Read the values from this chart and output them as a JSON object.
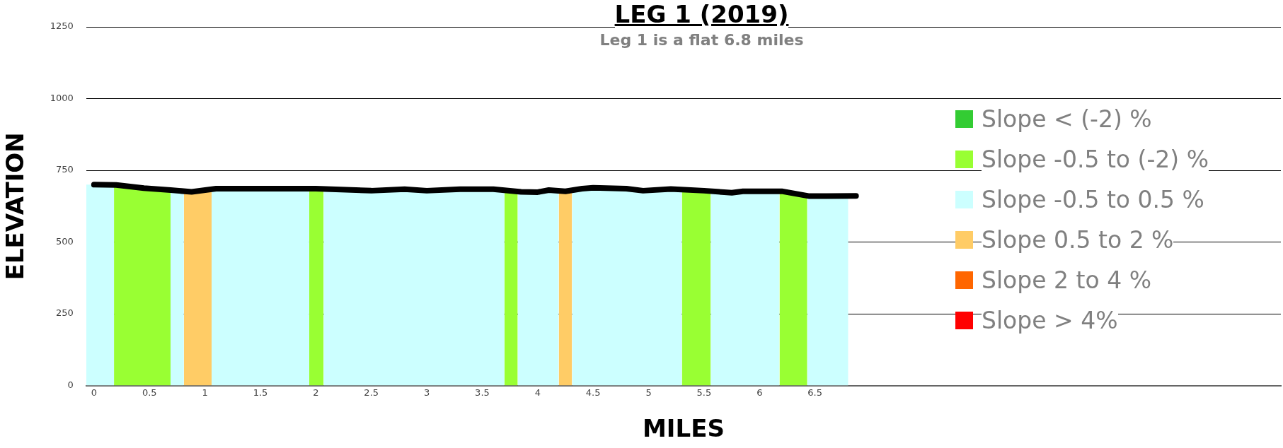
{
  "chart_data": {
    "type": "area",
    "title": "LEG 1 (2019)",
    "subtitle": "Leg 1 is a flat 6.8 miles",
    "xlabel": "MILES",
    "ylabel": "ELEVATION",
    "xlim": [
      -0.07,
      10.7
    ],
    "xticks": [
      0,
      0.5,
      1,
      1.5,
      2,
      2.5,
      3,
      3.5,
      4,
      4.5,
      5,
      5.5,
      6,
      6.5
    ],
    "ylim": [
      0,
      1250
    ],
    "yticks": [
      0,
      250,
      500,
      750,
      1000,
      1250
    ],
    "grid": "y",
    "legend": "right",
    "marker": "none",
    "series": [
      {
        "name": "Slope < (-2) %",
        "color": "#33cc33"
      },
      {
        "name": "Slope -0.5 to (-2) %",
        "color": "#99ff33",
        "x": [
          0.18,
          0.69,
          null,
          1.94,
          2.07,
          null,
          3.7,
          3.82,
          null,
          5.3,
          5.56,
          null,
          6.18,
          6.43
        ],
        "values": [
          699,
          681,
          null,
          686,
          685,
          null,
          682,
          676,
          null,
          683,
          677,
          null,
          677,
          661
        ]
      },
      {
        "name": "Slope -0.5 to 0.5 %",
        "color": "#ccffff",
        "x": [
          -0.07,
          0.18,
          null,
          0.69,
          0.81,
          null,
          1.06,
          1.94,
          null,
          2.07,
          3.7,
          null,
          3.82,
          4.19,
          null,
          4.31,
          5.3,
          null,
          5.56,
          6.18,
          null,
          6.43,
          6.8
        ],
        "values": [
          700,
          699,
          null,
          681,
          677,
          null,
          684,
          686,
          null,
          685,
          682,
          null,
          676,
          679,
          null,
          681,
          683,
          null,
          677,
          677,
          null,
          661,
          660
        ]
      },
      {
        "name": "Slope 0.5 to 2 %",
        "color": "#ffcc66",
        "x": [
          0.81,
          1.06,
          null,
          4.19,
          4.31
        ],
        "values": [
          677,
          684,
          null,
          679,
          681
        ]
      },
      {
        "name": "Slope 2 to 4 %",
        "color": "#ff6600"
      },
      {
        "name": "Slope > 4%",
        "color": "#ff0000"
      },
      {
        "color": "#000000",
        "type": "line",
        "line_style": "solid",
        "x": [
          0,
          0.2,
          0.45,
          0.69,
          0.88,
          1.1,
          2.0,
          2.5,
          2.8,
          3.0,
          3.3,
          3.6,
          3.85,
          4.0,
          4.1,
          4.25,
          4.4,
          4.5,
          4.8,
          4.95,
          5.2,
          5.5,
          5.75,
          5.85,
          6.2,
          6.45,
          6.6,
          6.87
        ],
        "values": [
          700,
          699,
          688,
          681,
          675,
          686,
          686,
          679,
          684,
          679,
          684,
          684,
          675,
          674,
          681,
          677,
          686,
          689,
          686,
          679,
          685,
          679,
          672,
          677,
          677,
          660,
          660,
          661
        ]
      }
    ]
  }
}
